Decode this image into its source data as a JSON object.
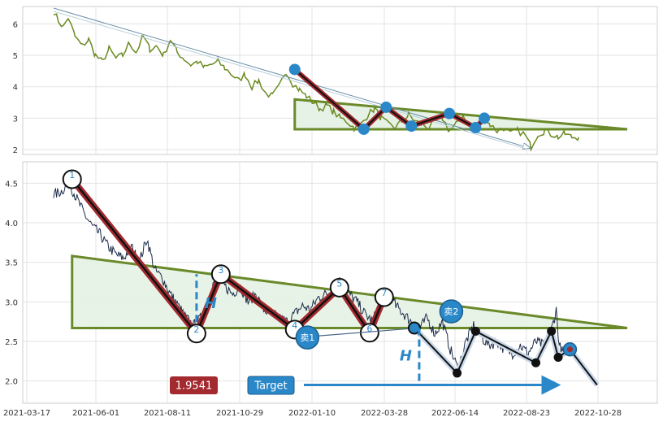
{
  "chart_data": [
    {
      "type": "line",
      "panel": "overview",
      "yticks": [
        2,
        3,
        4,
        5,
        6
      ],
      "ylim": [
        1.9,
        6.5
      ],
      "grid": true,
      "series": [
        {
          "values": [
            [
              "2021-03-17",
              6.4
            ],
            [
              "2021-03-22",
              6.1
            ],
            [
              "2021-03-27",
              5.9
            ],
            [
              "2021-04-01",
              6.2
            ],
            [
              "2021-04-08",
              5.6
            ],
            [
              "2021-04-15",
              5.3
            ],
            [
              "2021-04-22",
              5.5
            ],
            [
              "2021-04-29",
              5.0
            ],
            [
              "2021-05-06",
              4.8
            ],
            [
              "2021-05-13",
              5.2
            ],
            [
              "2021-05-20",
              4.9
            ],
            [
              "2021-05-27",
              5.0
            ],
            [
              "2021-06-03",
              5.4
            ],
            [
              "2021-06-10",
              5.1
            ],
            [
              "2021-06-17",
              5.6
            ],
            [
              "2021-06-24",
              5.2
            ],
            [
              "2021-07-01",
              5.3
            ],
            [
              "2021-07-08",
              5.0
            ],
            [
              "2021-07-15",
              5.5
            ],
            [
              "2021-07-22",
              5.1
            ],
            [
              "2021-07-29",
              4.9
            ],
            [
              "2021-08-05",
              4.7
            ],
            [
              "2021-08-12",
              4.8
            ],
            [
              "2021-08-19",
              4.6
            ],
            [
              "2021-08-26",
              4.7
            ],
            [
              "2021-09-02",
              4.8
            ],
            [
              "2021-09-09",
              4.6
            ],
            [
              "2021-09-16",
              4.4
            ],
            [
              "2021-09-23",
              4.2
            ],
            [
              "2021-09-30",
              4.4
            ],
            [
              "2021-10-07",
              4.0
            ],
            [
              "2021-10-14",
              4.2
            ],
            [
              "2021-10-21",
              3.8
            ],
            [
              "2021-10-28",
              3.7
            ],
            [
              "2021-11-04",
              4.0
            ],
            [
              "2021-11-11",
              4.5
            ],
            [
              "2021-11-18",
              4.1
            ],
            [
              "2021-11-25",
              3.9
            ],
            [
              "2021-12-02",
              3.7
            ],
            [
              "2021-12-09",
              3.5
            ],
            [
              "2021-12-16",
              3.3
            ],
            [
              "2021-12-23",
              3.4
            ],
            [
              "2021-12-30",
              3.2
            ],
            [
              "2022-01-06",
              3.0
            ],
            [
              "2022-01-13",
              2.9
            ],
            [
              "2022-01-20",
              2.7
            ],
            [
              "2022-01-27",
              2.8
            ],
            [
              "2022-02-03",
              3.1
            ],
            [
              "2022-02-10",
              3.3
            ],
            [
              "2022-02-17",
              3.0
            ],
            [
              "2022-02-24",
              2.8
            ],
            [
              "2022-03-03",
              2.7
            ],
            [
              "2022-03-10",
              2.9
            ],
            [
              "2022-03-17",
              3.1
            ],
            [
              "2022-03-24",
              2.9
            ],
            [
              "2022-03-31",
              2.8
            ],
            [
              "2022-04-07",
              2.7
            ],
            [
              "2022-04-14",
              2.9
            ],
            [
              "2022-04-21",
              3.0
            ],
            [
              "2022-04-28",
              2.6
            ],
            [
              "2022-05-05",
              2.8
            ],
            [
              "2022-05-12",
              3.1
            ],
            [
              "2022-05-19",
              2.8
            ],
            [
              "2022-05-26",
              2.7
            ],
            [
              "2022-06-02",
              3.0
            ],
            [
              "2022-06-09",
              2.8
            ],
            [
              "2022-06-16",
              2.6
            ],
            [
              "2022-06-23",
              2.7
            ],
            [
              "2022-06-30",
              2.5
            ],
            [
              "2022-07-07",
              2.6
            ],
            [
              "2022-07-14",
              2.5
            ],
            [
              "2022-07-21",
              2.1
            ],
            [
              "2022-07-28",
              2.5
            ],
            [
              "2022-08-04",
              2.6
            ],
            [
              "2022-08-11",
              2.5
            ],
            [
              "2022-08-18",
              2.4
            ],
            [
              "2022-08-25",
              2.5
            ],
            [
              "2022-09-01",
              2.4
            ],
            [
              "2022-09-08",
              2.4
            ]
          ]
        }
      ],
      "arrow": {
        "from": [
          "2021-03-17",
          6.5
        ],
        "to": [
          "2022-07-20",
          2.05
        ]
      },
      "triangle": {
        "left_date": "2021-11-20",
        "top": 3.6,
        "base": 2.65,
        "apex_date": "2022-10-28",
        "apex": 2.65
      },
      "swing_points": [
        [
          "2021-11-20",
          4.55
        ],
        [
          "2022-01-30",
          2.65
        ],
        [
          "2022-02-22",
          3.35
        ],
        [
          "2022-03-20",
          2.75
        ],
        [
          "2022-04-28",
          3.15
        ],
        [
          "2022-05-25",
          2.7
        ],
        [
          "2022-06-03",
          3.0
        ]
      ]
    },
    {
      "type": "line",
      "panel": "detail",
      "x_tick_labels": [
        "2021-03-17",
        "2021-06-01",
        "2021-08-11",
        "2021-10-29",
        "2022-01-10",
        "2022-03-28",
        "2022-06-14",
        "2022-08-23",
        "2022-10-28"
      ],
      "yticks": [
        2.0,
        2.5,
        3.0,
        3.5,
        4.0,
        4.5
      ],
      "ytick_labels": [
        "2.0",
        "2.5",
        "3.0",
        "3.5",
        "4.0",
        "4.5"
      ],
      "ylim": [
        1.75,
        4.75
      ],
      "grid": true,
      "price": [
        [
          "2021-03-17",
          4.35
        ],
        [
          "2021-03-25",
          4.4
        ],
        [
          "2021-04-02",
          4.5
        ],
        [
          "2021-04-10",
          4.3
        ],
        [
          "2021-04-18",
          4.1
        ],
        [
          "2021-04-26",
          3.95
        ],
        [
          "2021-05-04",
          3.85
        ],
        [
          "2021-05-12",
          3.7
        ],
        [
          "2021-05-20",
          3.6
        ],
        [
          "2021-05-28",
          3.55
        ],
        [
          "2021-06-05",
          3.7
        ],
        [
          "2021-06-13",
          3.5
        ],
        [
          "2021-06-21",
          3.8
        ],
        [
          "2021-06-29",
          3.4
        ],
        [
          "2021-07-07",
          3.3
        ],
        [
          "2021-07-15",
          3.1
        ],
        [
          "2021-07-23",
          2.95
        ],
        [
          "2021-07-31",
          2.8
        ],
        [
          "2021-08-08",
          2.7
        ],
        [
          "2021-08-16",
          2.8
        ],
        [
          "2021-08-24",
          3.1
        ],
        [
          "2021-09-01",
          3.35
        ],
        [
          "2021-09-09",
          3.2
        ],
        [
          "2021-09-17",
          3.1
        ],
        [
          "2021-09-25",
          3.2
        ],
        [
          "2021-10-03",
          3.0
        ],
        [
          "2021-10-11",
          3.1
        ],
        [
          "2021-10-19",
          2.9
        ],
        [
          "2021-10-27",
          2.85
        ],
        [
          "2021-11-04",
          2.8
        ],
        [
          "2021-11-12",
          2.75
        ],
        [
          "2021-11-20",
          2.85
        ],
        [
          "2021-11-28",
          2.95
        ],
        [
          "2021-12-06",
          2.9
        ],
        [
          "2021-12-14",
          3.05
        ],
        [
          "2021-12-22",
          3.1
        ],
        [
          "2021-12-30",
          3.15
        ],
        [
          "2022-01-07",
          3.3
        ],
        [
          "2022-01-15",
          3.1
        ],
        [
          "2022-01-23",
          3.0
        ],
        [
          "2022-01-31",
          2.85
        ],
        [
          "2022-02-08",
          2.75
        ],
        [
          "2022-02-16",
          3.0
        ],
        [
          "2022-02-24",
          3.15
        ],
        [
          "2022-03-04",
          2.95
        ],
        [
          "2022-03-12",
          2.85
        ],
        [
          "2022-03-20",
          2.75
        ],
        [
          "2022-03-28",
          2.65
        ],
        [
          "2022-04-05",
          2.8
        ],
        [
          "2022-04-13",
          2.6
        ],
        [
          "2022-04-21",
          2.75
        ],
        [
          "2022-04-29",
          2.4
        ],
        [
          "2022-05-07",
          2.15
        ],
        [
          "2022-05-15",
          2.5
        ],
        [
          "2022-05-23",
          2.7
        ],
        [
          "2022-05-31",
          2.55
        ],
        [
          "2022-06-08",
          2.45
        ],
        [
          "2022-06-16",
          2.5
        ],
        [
          "2022-06-24",
          2.4
        ],
        [
          "2022-07-02",
          2.35
        ],
        [
          "2022-07-10",
          2.45
        ],
        [
          "2022-07-18",
          2.35
        ],
        [
          "2022-07-26",
          2.5
        ],
        [
          "2022-08-03",
          2.45
        ],
        [
          "2022-08-11",
          2.65
        ],
        [
          "2022-08-16",
          2.9
        ],
        [
          "2022-08-19",
          2.45
        ],
        [
          "2022-08-23",
          2.35
        ]
      ],
      "triangle": {
        "left_date": "2021-04-05",
        "top": 3.58,
        "base": 2.67,
        "apex_date": "2022-10-28",
        "apex": 2.67
      },
      "zigzag": [
        {
          "label": "1",
          "date": "2021-04-05",
          "value": 4.55
        },
        {
          "label": "2",
          "date": "2021-08-11",
          "value": 2.6
        },
        {
          "label": "3",
          "date": "2021-09-05",
          "value": 3.35
        },
        {
          "label": "4",
          "date": "2021-11-20",
          "value": 2.65
        },
        {
          "label": "5",
          "date": "2022-01-05",
          "value": 3.18
        },
        {
          "label": "6",
          "date": "2022-02-05",
          "value": 2.61
        },
        {
          "label": "7",
          "date": "2022-02-20",
          "value": 3.06
        }
      ],
      "sell_points": [
        {
          "label": "卖1",
          "date": "2021-12-03",
          "value": 2.55
        },
        {
          "label": "卖2",
          "date": "2022-04-30",
          "value": 2.88
        }
      ],
      "projection": [
        [
          "2022-03-23",
          2.67
        ],
        [
          "2022-05-06",
          2.1
        ],
        [
          "2022-05-25",
          2.63
        ],
        [
          "2022-07-26",
          2.23
        ],
        [
          "2022-08-11",
          2.63
        ],
        [
          "2022-08-18",
          2.3
        ],
        [
          "2022-08-30",
          2.4
        ],
        [
          "2022-09-27",
          1.95
        ]
      ],
      "h_markers": [
        {
          "label": "H",
          "date": "2021-08-11",
          "from": 2.6,
          "to": 3.35
        },
        {
          "label": "H",
          "date": "2022-03-28",
          "from": 2.67,
          "to": 1.95
        }
      ],
      "target_value": "1.9541",
      "target_label": "Target",
      "target_price": 1.95,
      "colors": {
        "price": "#1b2a48",
        "zigzag": "#a32a2f",
        "triangle": "#6a8a2a",
        "triangle_fill": "#e6f2e6",
        "accent": "#2a88c8",
        "overview_line": "#6a8a1f"
      }
    }
  ]
}
